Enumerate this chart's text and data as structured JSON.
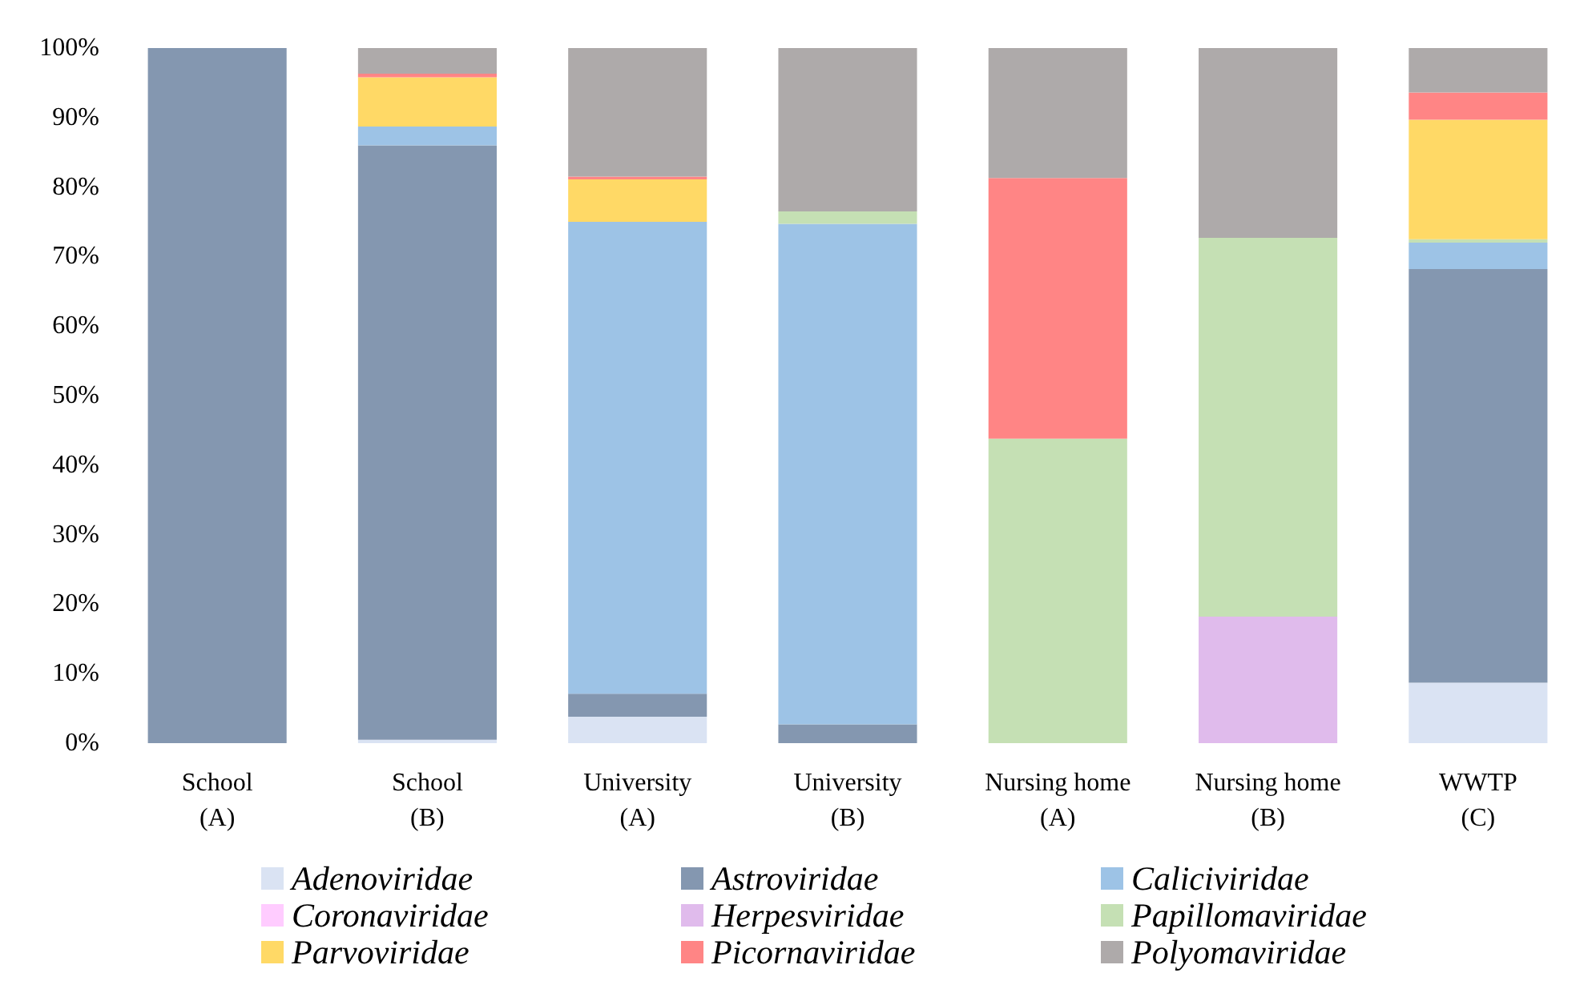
{
  "chart_data": {
    "type": "bar",
    "stacked": true,
    "categories": [
      "School\n(A)",
      "School\n(B)",
      "University\n(A)",
      "University\n(B)",
      "Nursing home\n(A)",
      "Nursing home\n(B)",
      "WWTP\n(C)"
    ],
    "series": [
      {
        "name": "Adenoviridae",
        "color": "#dae3f3",
        "values": [
          0,
          0.5,
          3.8,
          0,
          0,
          0,
          8.7
        ]
      },
      {
        "name": "Astroviridae",
        "color": "#8497b0",
        "values": [
          100,
          85.5,
          3.3,
          2.7,
          0,
          0,
          59.5
        ]
      },
      {
        "name": "Caliciviridae",
        "color": "#9dc3e6",
        "values": [
          0,
          2.7,
          67.9,
          72.0,
          0,
          0,
          3.8
        ]
      },
      {
        "name": "Coronaviridae",
        "color": "#ffccff",
        "values": [
          0,
          0,
          0,
          0,
          0,
          0,
          0
        ]
      },
      {
        "name": "Herpesviridae",
        "color": "#e0bbec",
        "values": [
          0,
          0,
          0,
          0,
          0,
          18.2,
          0
        ]
      },
      {
        "name": "Papillomaviridae",
        "color": "#c5e0b4",
        "values": [
          0,
          0,
          null,
          1.8,
          43.8,
          54.5,
          0.5
        ]
      },
      {
        "name": "Parvoviridae",
        "color": "#ffd966",
        "values": [
          0,
          7.1,
          6.1,
          0,
          0,
          0,
          17.2
        ]
      },
      {
        "name": "Picornaviridae",
        "color": "#ff8585",
        "values": [
          0,
          0.5,
          0.4,
          0,
          37.5,
          0,
          3.9
        ]
      },
      {
        "name": "Polyomaviridae",
        "color": "#aeaaaa",
        "values": [
          0,
          3.7,
          18.5,
          23.5,
          18.7,
          27.3,
          6.4
        ]
      }
    ],
    "ylim": [
      0,
      100
    ],
    "yticks": [
      {
        "value": 0,
        "label": "0%"
      },
      {
        "value": 10,
        "label": "10%"
      },
      {
        "value": 20,
        "label": "20%"
      },
      {
        "value": 30,
        "label": "30%"
      },
      {
        "value": 40,
        "label": "40%"
      },
      {
        "value": 50,
        "label": "50%"
      },
      {
        "value": 60,
        "label": "60%"
      },
      {
        "value": 70,
        "label": "70%"
      },
      {
        "value": 80,
        "label": "80%"
      },
      {
        "value": 90,
        "label": "90%"
      },
      {
        "value": 100,
        "label": "100%"
      }
    ],
    "grid": false,
    "legend": "bottom"
  }
}
